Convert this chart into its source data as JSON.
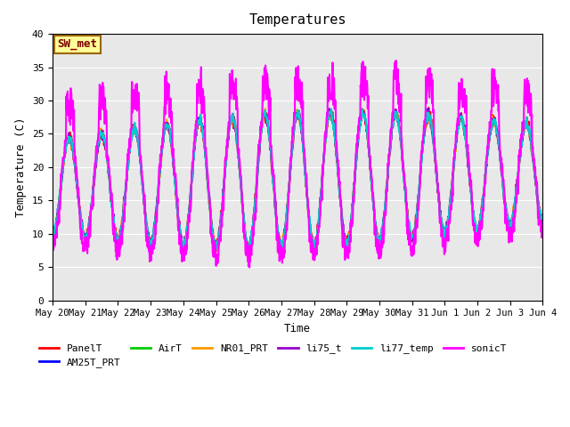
{
  "title": "Temperatures",
  "xlabel": "Time",
  "ylabel": "Temperature (C)",
  "ylim": [
    0,
    40
  ],
  "yticks": [
    0,
    5,
    10,
    15,
    20,
    25,
    30,
    35,
    40
  ],
  "bg_color": "#e8e8e8",
  "fig_color": "#ffffff",
  "annotation_text": "SW_met",
  "annotation_bg": "#ffff99",
  "annotation_border": "#996600",
  "annotation_text_color": "#800000",
  "series": {
    "PanelT": {
      "color": "#ff0000",
      "lw": 1.5
    },
    "AM25T_PRT": {
      "color": "#0000ff",
      "lw": 1.5
    },
    "AirT": {
      "color": "#00cc00",
      "lw": 1.5
    },
    "NR01_PRT": {
      "color": "#ff9900",
      "lw": 1.5
    },
    "li75_t": {
      "color": "#9900cc",
      "lw": 1.5
    },
    "li77_temp": {
      "color": "#00cccc",
      "lw": 1.5
    },
    "sonicT": {
      "color": "#ff00ff",
      "lw": 1.5
    }
  },
  "xtick_labels": [
    "May 20",
    "May 21",
    "May 22",
    "May 23",
    "May 24",
    "May 25",
    "May 26",
    "May 27",
    "May 28",
    "May 29",
    "May 30",
    "May 31",
    "Jun 1",
    "Jun 2",
    "Jun 3",
    "Jun 4"
  ],
  "num_points": 1440,
  "trend_slope": 0.15
}
